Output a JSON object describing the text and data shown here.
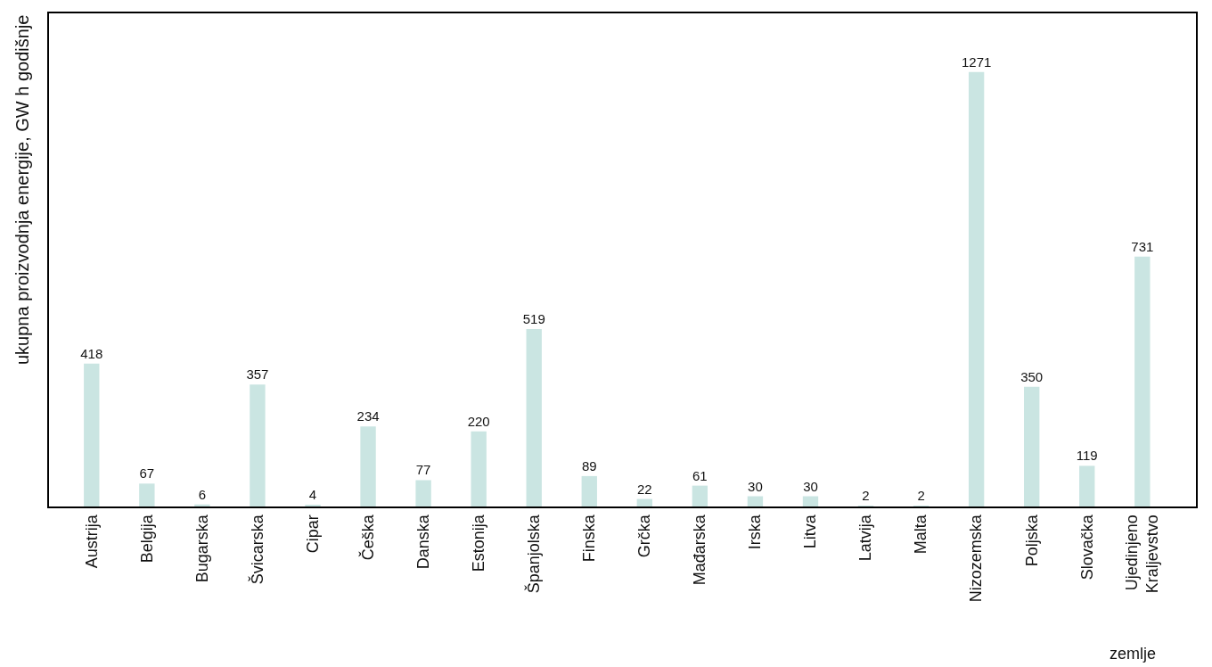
{
  "chart_data": {
    "type": "bar",
    "xlabel": "zemlje",
    "ylabel": "ukupna proizvodnja energije, GW h godišnje",
    "categories": [
      "Austrija",
      "Belgija",
      "Bugarska",
      "Švicarska",
      "Cipar",
      "Češka",
      "Danska",
      "Estonija",
      "Španjolska",
      "Finska",
      "Grčka",
      "Mađarska",
      "Irska",
      "Litva",
      "Latvija",
      "Malta",
      "Nizozemska",
      "Poljska",
      "Slovačka",
      "Ujedinjeno Kraljevstvo"
    ],
    "values": [
      418,
      67,
      6,
      357,
      4,
      234,
      77,
      220,
      519,
      89,
      22,
      61,
      30,
      30,
      2,
      2,
      1271,
      350,
      119,
      731
    ],
    "data_labels": true,
    "color": "#cae5e2"
  }
}
